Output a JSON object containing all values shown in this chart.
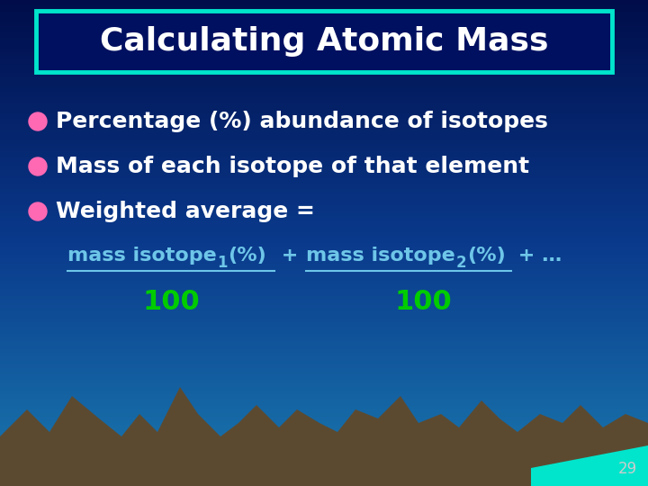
{
  "title": "Calculating Atomic Mass",
  "title_color": "#FFFFFF",
  "title_box_edge_color": "#00E5CC",
  "title_box_face_color": "#001060",
  "bg_top_color": "#000D4A",
  "bg_mid_color": "#0A3A8C",
  "bg_bottom_color": "#1A7AAF",
  "bullet_color": "#FF69B4",
  "bullet_text_color": "#FFFFFF",
  "bullet1": "Percentage (%) abundance of isotopes",
  "bullet2": "Mass of each isotope of that element",
  "bullet3": "Weighted average =",
  "formula_color": "#6EC6E8",
  "denominator_color": "#00CC00",
  "mountain_color": "#5C4A30",
  "water_color": "#00E5CC",
  "page_number": "29",
  "page_number_color": "#CCCCCC",
  "mountain_points_x": [
    0,
    30,
    55,
    80,
    110,
    135,
    155,
    175,
    200,
    220,
    245,
    265,
    285,
    310,
    330,
    355,
    375,
    395,
    420,
    445,
    465,
    490,
    510,
    535,
    555,
    575,
    600,
    625,
    645,
    670,
    695,
    720,
    720,
    0
  ],
  "mountain_points_y": [
    55,
    85,
    60,
    100,
    75,
    55,
    80,
    60,
    110,
    80,
    55,
    70,
    90,
    65,
    85,
    70,
    60,
    85,
    75,
    100,
    70,
    80,
    65,
    95,
    75,
    60,
    80,
    70,
    90,
    65,
    80,
    70,
    0,
    0
  ]
}
